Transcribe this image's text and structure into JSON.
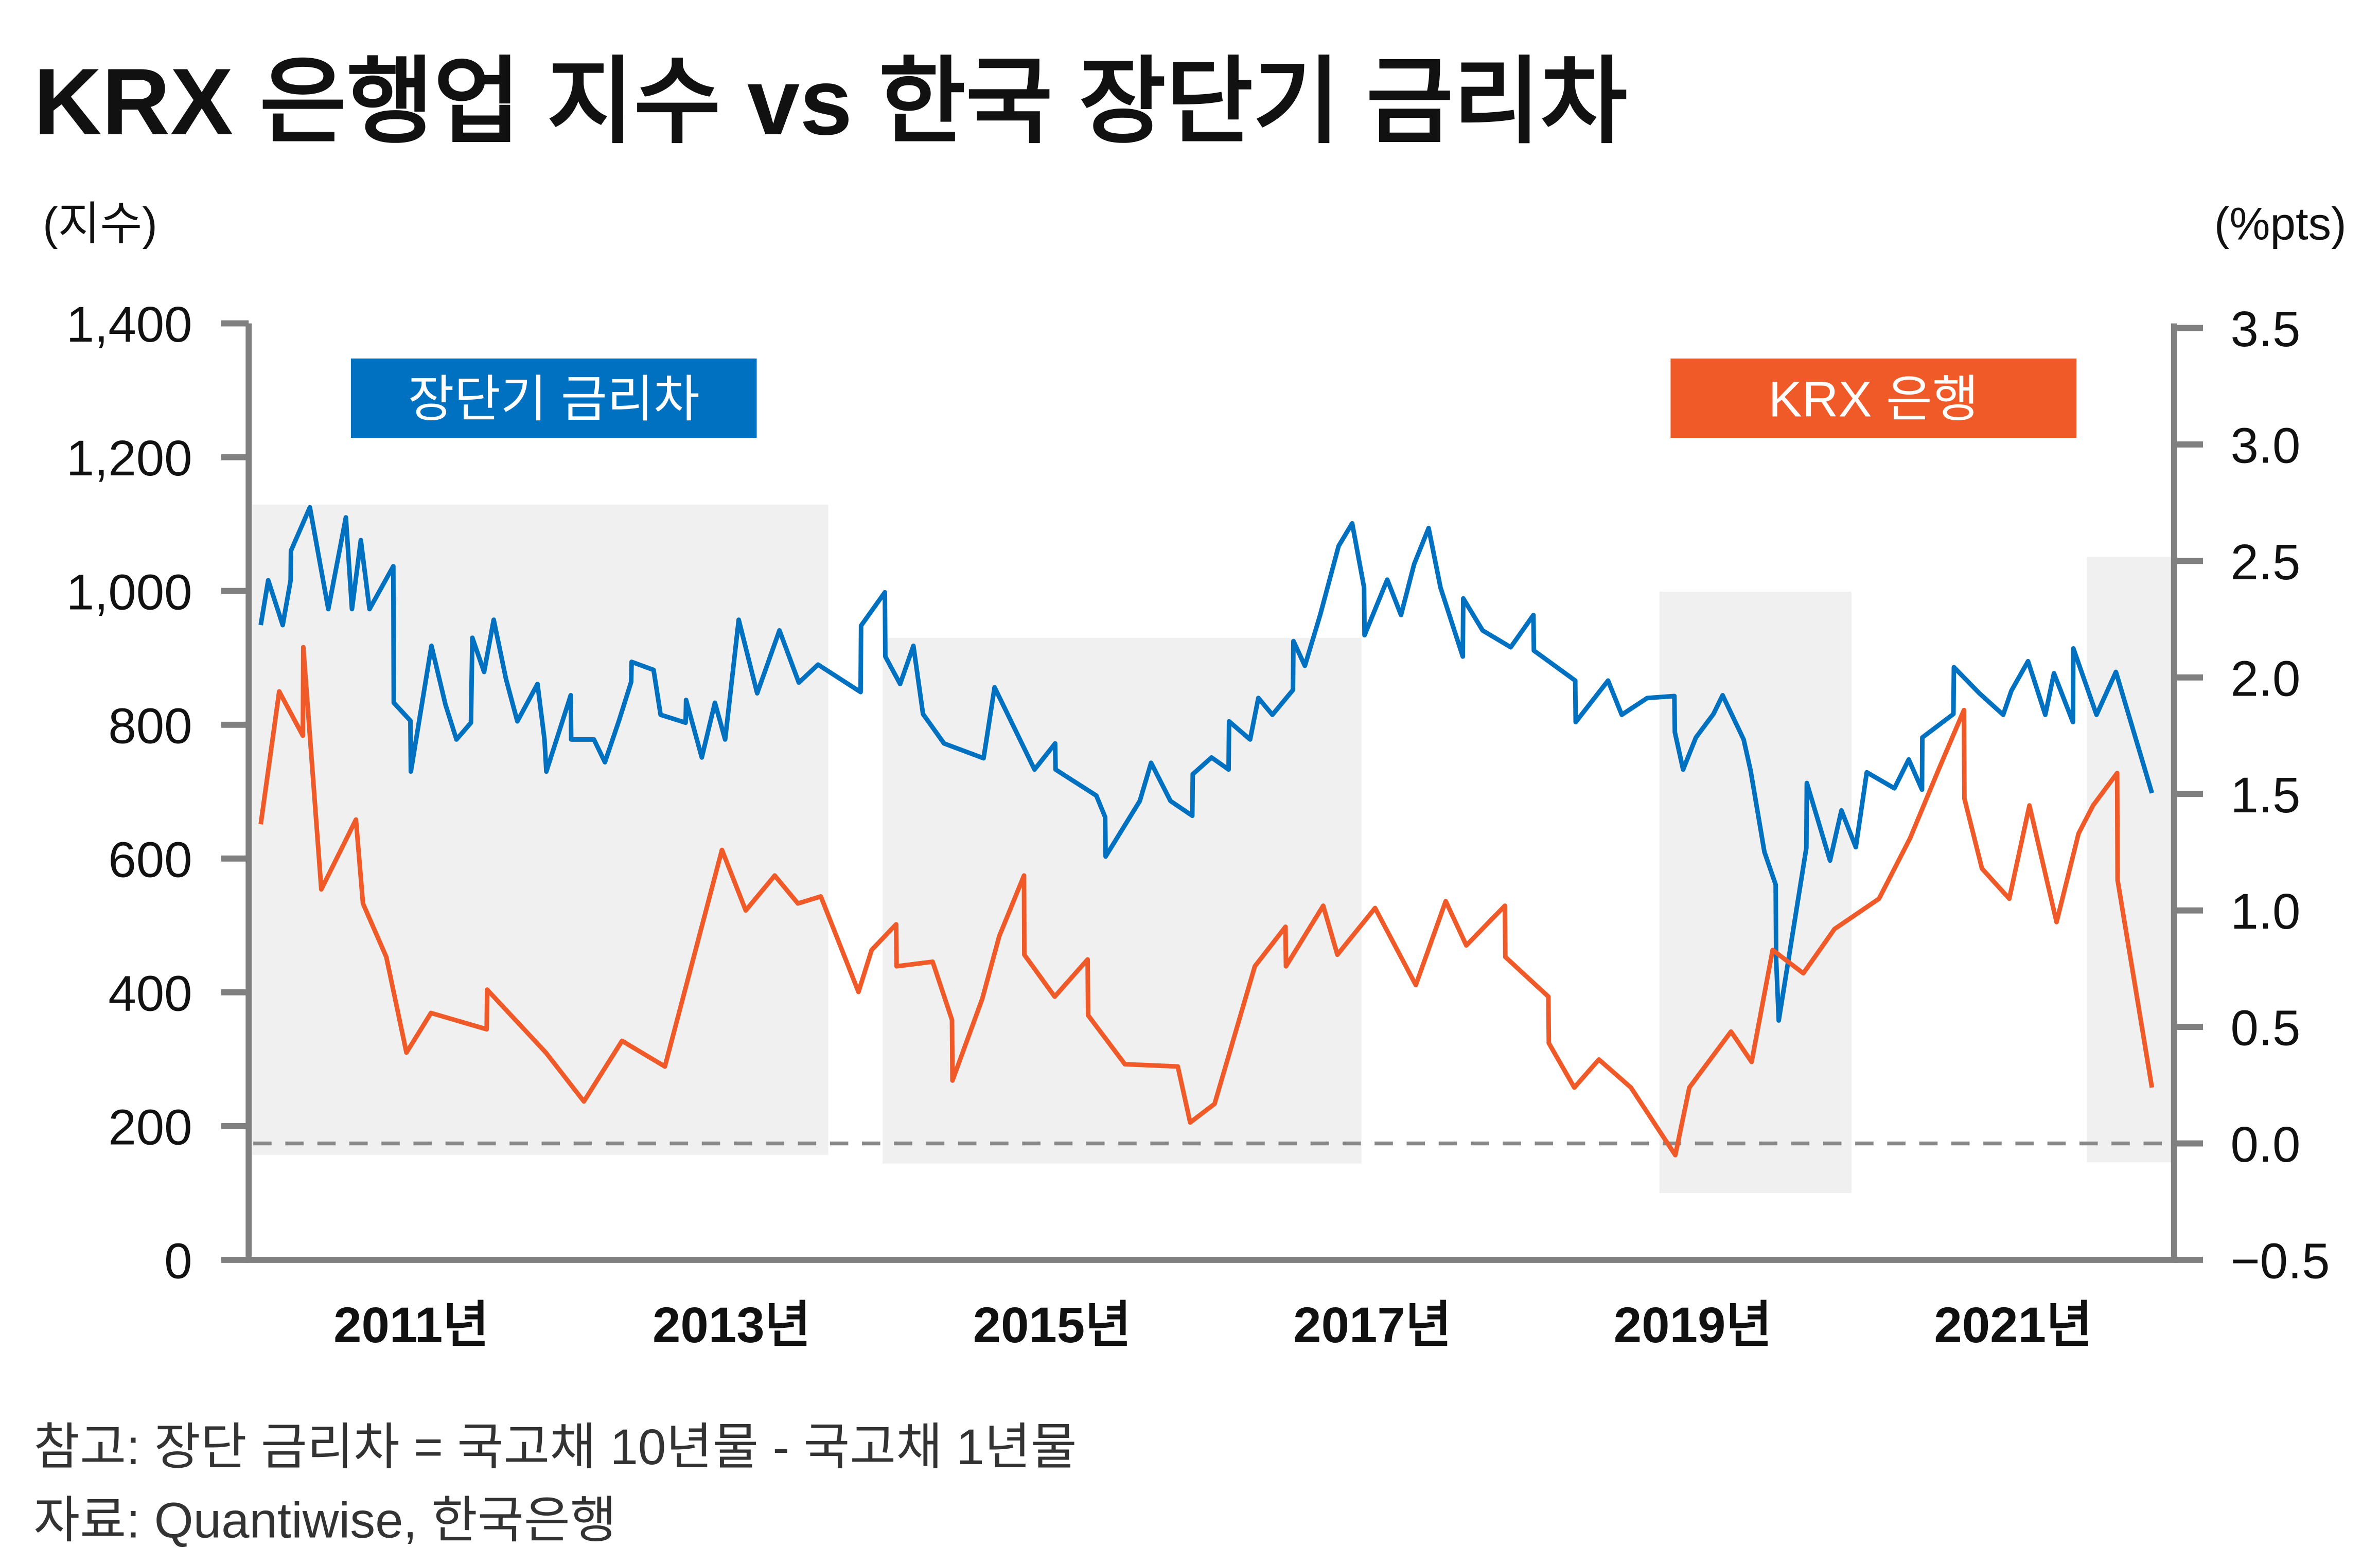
{
  "title": "KRX 은행업 지수 vs 한국 장단기 금리차",
  "left_unit": "(지수)",
  "right_unit": "(%pts)",
  "notes": [
    "참고: 장단 금리차 = 국고채 10년물 - 국고채 1년물",
    "자료: Quantiwise, 한국은행"
  ],
  "colors": {
    "blue": "#0070C0",
    "orange": "#F05A28",
    "shade": "#F0F0F0",
    "axis": "#808080",
    "zero_line": "#888888"
  },
  "legend": [
    {
      "label": "장단기 금리차",
      "color": "#0070C0"
    },
    {
      "label": "KRX 은행",
      "color": "#F05A28"
    }
  ],
  "chart_data": {
    "type": "line",
    "title": "KRX 은행업 지수 vs 한국 장단기 금리차",
    "x_range": [
      "2010-07-04",
      "2022-07-01"
    ],
    "x_ticks": [
      {
        "date": "2011-07-01",
        "label": "2011년"
      },
      {
        "date": "2013-07-01",
        "label": "2013년"
      },
      {
        "date": "2015-07-01",
        "label": "2015년"
      },
      {
        "date": "2017-07-01",
        "label": "2017년"
      },
      {
        "date": "2019-07-01",
        "label": "2019년"
      },
      {
        "date": "2021-07-01",
        "label": "2021년"
      }
    ],
    "left_axis": {
      "label": "(지수)",
      "range": [
        0,
        1400
      ],
      "ticks": [
        0,
        200,
        400,
        600,
        800,
        1000,
        1200,
        1400
      ],
      "tick_labels": [
        "0",
        "200",
        "400",
        "600",
        "800",
        "1,000",
        "1,200",
        "1,400"
      ]
    },
    "right_axis": {
      "label": "(%pts)",
      "range": [
        -0.5,
        3.5
      ],
      "ticks": [
        -0.5,
        0,
        0.5,
        1,
        1.5,
        2,
        2.5,
        3,
        3.5
      ],
      "tick_labels": [
        "−0.5",
        "0.0",
        "0.5",
        "1.0",
        "1.5",
        "2.0",
        "2.5",
        "3.0",
        "3.5"
      ]
    },
    "reference_line": {
      "axis": "right",
      "value": 0.0,
      "style": "dashed"
    },
    "grid": false,
    "legend_placement": "top",
    "shaded_periods": [
      {
        "start": "2010-07-04",
        "end": "2014-02-06",
        "top": 1129,
        "bottom": 157
      },
      {
        "start": "2014-06-10",
        "end": "2017-06-06",
        "top": 930,
        "bottom": 144
      },
      {
        "start": "2019-04-16",
        "end": "2020-06-27",
        "top": 999,
        "bottom": 100
      },
      {
        "start": "2021-12-16",
        "end": "2022-07-01",
        "top": 1051,
        "bottom": 146
      }
    ],
    "series": [
      {
        "name": "장단기 금리차",
        "color": "#0070C0",
        "axis": "left",
        "points": [
          [
            "2010-07-23",
            949
          ],
          [
            "2010-08-09",
            1016
          ],
          [
            "2010-09-11",
            949
          ],
          [
            "2010-09-29",
            1016
          ],
          [
            "2010-09-30",
            1060
          ],
          [
            "2010-11-12",
            1125
          ],
          [
            "2010-12-24",
            973
          ],
          [
            "2011-02-02",
            1110
          ],
          [
            "2011-02-16",
            973
          ],
          [
            "2011-03-08",
            1076
          ],
          [
            "2011-03-28",
            973
          ],
          [
            "2011-05-21",
            1037
          ],
          [
            "2011-05-22",
            833
          ],
          [
            "2011-06-29",
            806
          ],
          [
            "2011-06-30",
            730
          ],
          [
            "2011-08-16",
            918
          ],
          [
            "2011-09-17",
            830
          ],
          [
            "2011-10-12",
            778
          ],
          [
            "2011-11-14",
            803
          ],
          [
            "2011-11-17",
            930
          ],
          [
            "2011-12-14",
            879
          ],
          [
            "2012-01-05",
            957
          ],
          [
            "2012-02-02",
            868
          ],
          [
            "2012-02-28",
            805
          ],
          [
            "2012-04-14",
            861
          ],
          [
            "2012-04-30",
            778
          ],
          [
            "2012-05-04",
            730
          ],
          [
            "2012-06-29",
            844
          ],
          [
            "2012-06-30",
            778
          ],
          [
            "2012-08-21",
            778
          ],
          [
            "2012-09-15",
            744
          ],
          [
            "2012-10-17",
            806
          ],
          [
            "2012-11-14",
            864
          ],
          [
            "2012-11-15",
            894
          ],
          [
            "2013-01-04",
            882
          ],
          [
            "2013-01-20",
            815
          ],
          [
            "2013-03-18",
            803
          ],
          [
            "2013-03-19",
            837
          ],
          [
            "2013-04-24",
            751
          ],
          [
            "2013-05-24",
            833
          ],
          [
            "2013-06-16",
            778
          ],
          [
            "2013-07-17",
            957
          ],
          [
            "2013-08-28",
            847
          ],
          [
            "2013-10-18",
            941
          ],
          [
            "2013-12-01",
            863
          ],
          [
            "2014-01-14",
            890
          ],
          [
            "2014-04-21",
            849
          ],
          [
            "2014-04-22",
            948
          ],
          [
            "2014-06-15",
            998
          ],
          [
            "2014-06-16",
            902
          ],
          [
            "2014-07-20",
            861
          ],
          [
            "2014-08-19",
            918
          ],
          [
            "2014-09-10",
            816
          ],
          [
            "2014-10-28",
            772
          ],
          [
            "2015-01-26",
            750
          ],
          [
            "2015-02-20",
            856
          ],
          [
            "2015-05-22",
            733
          ],
          [
            "2015-07-08",
            772
          ],
          [
            "2015-07-09",
            733
          ],
          [
            "2015-10-10",
            694
          ],
          [
            "2015-10-30",
            662
          ],
          [
            "2015-10-31",
            603
          ],
          [
            "2016-01-17",
            686
          ],
          [
            "2016-02-12",
            743
          ],
          [
            "2016-03-27",
            686
          ],
          [
            "2016-05-16",
            664
          ],
          [
            "2016-05-17",
            726
          ],
          [
            "2016-06-29",
            751
          ],
          [
            "2016-08-07",
            733
          ],
          [
            "2016-08-08",
            805
          ],
          [
            "2016-09-25",
            778
          ],
          [
            "2016-10-14",
            840
          ],
          [
            "2016-11-15",
            815
          ],
          [
            "2017-01-01",
            852
          ],
          [
            "2017-01-02",
            925
          ],
          [
            "2017-01-28",
            888
          ],
          [
            "2017-03-04",
            964
          ],
          [
            "2017-04-15",
            1067
          ],
          [
            "2017-05-16",
            1101
          ],
          [
            "2017-06-12",
            1005
          ],
          [
            "2017-06-13",
            934
          ],
          [
            "2017-08-04",
            1017
          ],
          [
            "2017-09-04",
            964
          ],
          [
            "2017-10-04",
            1040
          ],
          [
            "2017-11-06",
            1094
          ],
          [
            "2017-12-03",
            1005
          ],
          [
            "2018-01-23",
            902
          ],
          [
            "2018-01-24",
            989
          ],
          [
            "2018-03-09",
            941
          ],
          [
            "2018-05-12",
            916
          ],
          [
            "2018-07-03",
            964
          ],
          [
            "2018-07-04",
            911
          ],
          [
            "2018-10-06",
            866
          ],
          [
            "2018-10-07",
            804
          ],
          [
            "2018-12-20",
            866
          ],
          [
            "2019-01-20",
            815
          ],
          [
            "2019-03-19",
            840
          ],
          [
            "2019-05-20",
            843
          ],
          [
            "2019-05-21",
            789
          ],
          [
            "2019-06-09",
            733
          ],
          [
            "2019-07-08",
            781
          ],
          [
            "2019-08-17",
            816
          ],
          [
            "2019-09-07",
            844
          ],
          [
            "2019-10-25",
            778
          ],
          [
            "2019-11-10",
            731
          ],
          [
            "2019-12-11",
            610
          ],
          [
            "2020-01-06",
            561
          ],
          [
            "2020-01-07",
            449
          ],
          [
            "2020-01-13",
            358
          ],
          [
            "2020-03-16",
            616
          ],
          [
            "2020-03-17",
            713
          ],
          [
            "2020-05-09",
            597
          ],
          [
            "2020-06-04",
            672
          ],
          [
            "2020-07-07",
            617
          ],
          [
            "2020-08-01",
            729
          ],
          [
            "2020-10-03",
            705
          ],
          [
            "2020-11-05",
            748
          ],
          [
            "2020-12-05",
            703
          ],
          [
            "2020-12-06",
            781
          ],
          [
            "2021-02-15",
            816
          ],
          [
            "2021-02-16",
            886
          ],
          [
            "2021-04-15",
            847
          ],
          [
            "2021-06-08",
            815
          ],
          [
            "2021-06-27",
            851
          ],
          [
            "2021-08-04",
            895
          ],
          [
            "2021-09-12",
            815
          ],
          [
            "2021-10-02",
            877
          ],
          [
            "2021-11-14",
            804
          ],
          [
            "2021-11-15",
            914
          ],
          [
            "2022-01-07",
            815
          ],
          [
            "2022-02-20",
            879
          ],
          [
            "2022-05-13",
            698
          ]
        ]
      },
      {
        "name": "KRX 은행",
        "color": "#F05A28",
        "axis": "right",
        "points": [
          [
            "2010-07-23",
            1.37
          ],
          [
            "2010-09-03",
            1.94
          ],
          [
            "2010-10-27",
            1.75
          ],
          [
            "2010-10-28",
            2.13
          ],
          [
            "2010-12-08",
            1.09
          ],
          [
            "2011-02-25",
            1.39
          ],
          [
            "2011-03-13",
            1.03
          ],
          [
            "2011-05-05",
            0.8
          ],
          [
            "2011-06-20",
            0.39
          ],
          [
            "2011-08-15",
            0.56
          ],
          [
            "2011-12-20",
            0.49
          ],
          [
            "2011-12-21",
            0.66
          ],
          [
            "2012-05-03",
            0.39
          ],
          [
            "2012-07-29",
            0.18
          ],
          [
            "2012-10-24",
            0.44
          ],
          [
            "2013-01-30",
            0.33
          ],
          [
            "2013-06-09",
            1.26
          ],
          [
            "2013-08-02",
            1.0
          ],
          [
            "2013-10-07",
            1.15
          ],
          [
            "2013-11-29",
            1.03
          ],
          [
            "2014-01-20",
            1.06
          ],
          [
            "2014-04-16",
            0.65
          ],
          [
            "2014-05-16",
            0.83
          ],
          [
            "2014-07-11",
            0.94
          ],
          [
            "2014-07-12",
            0.76
          ],
          [
            "2014-10-02",
            0.78
          ],
          [
            "2014-11-15",
            0.53
          ],
          [
            "2014-11-16",
            0.27
          ],
          [
            "2015-01-23",
            0.62
          ],
          [
            "2015-03-03",
            0.89
          ],
          [
            "2015-04-28",
            1.15
          ],
          [
            "2015-04-29",
            0.81
          ],
          [
            "2015-07-07",
            0.63
          ],
          [
            "2015-09-20",
            0.79
          ],
          [
            "2015-09-21",
            0.55
          ],
          [
            "2015-12-14",
            0.34
          ],
          [
            "2016-04-13",
            0.33
          ],
          [
            "2016-05-11",
            0.09
          ],
          [
            "2016-07-06",
            0.17
          ],
          [
            "2016-10-06",
            0.76
          ],
          [
            "2016-12-15",
            0.93
          ],
          [
            "2016-12-16",
            0.76
          ],
          [
            "2017-03-11",
            1.02
          ],
          [
            "2017-04-12",
            0.81
          ],
          [
            "2017-07-07",
            1.01
          ],
          [
            "2017-10-08",
            0.68
          ],
          [
            "2017-12-15",
            1.04
          ],
          [
            "2018-01-31",
            0.85
          ],
          [
            "2018-04-29",
            1.02
          ],
          [
            "2018-04-30",
            0.8
          ],
          [
            "2018-08-06",
            0.63
          ],
          [
            "2018-08-07",
            0.43
          ],
          [
            "2018-10-04",
            0.24
          ],
          [
            "2018-11-29",
            0.36
          ],
          [
            "2019-02-10",
            0.24
          ],
          [
            "2019-05-22",
            -0.05
          ],
          [
            "2019-06-23",
            0.24
          ],
          [
            "2019-09-26",
            0.48
          ],
          [
            "2019-11-12",
            0.35
          ],
          [
            "2019-12-30",
            0.83
          ],
          [
            "2020-03-09",
            0.73
          ],
          [
            "2020-05-19",
            0.92
          ],
          [
            "2020-08-29",
            1.05
          ],
          [
            "2020-11-08",
            1.31
          ],
          [
            "2021-01-11",
            1.6
          ],
          [
            "2021-03-11",
            1.86
          ],
          [
            "2021-03-12",
            1.48
          ],
          [
            "2021-04-21",
            1.18
          ],
          [
            "2021-06-22",
            1.05
          ],
          [
            "2021-08-07",
            1.45
          ],
          [
            "2021-10-08",
            0.95
          ],
          [
            "2021-11-27",
            1.33
          ],
          [
            "2021-12-30",
            1.45
          ],
          [
            "2022-02-23",
            1.59
          ],
          [
            "2022-02-24",
            1.13
          ],
          [
            "2022-05-13",
            0.24
          ]
        ]
      }
    ]
  }
}
